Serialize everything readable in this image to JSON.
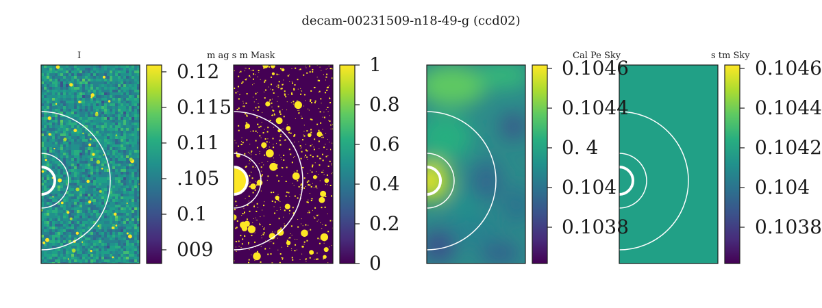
{
  "title": "decam-00231509-n18-49-g (ccd02)",
  "chart_data": [
    {
      "type": "heatmap",
      "title": "I",
      "colormap": "viridis",
      "style": "noise",
      "colorbar_ticks": [
        "0.12",
        "0.115",
        "0.11",
        ".105",
        "0.1",
        "009"
      ],
      "colorbar_fracs": [
        0.0343,
        0.2136,
        0.3929,
        0.5724,
        0.7517,
        0.931
      ]
    },
    {
      "type": "heatmap",
      "title": "m  ag      s           m Mask",
      "colormap": "viridis",
      "style": "mask",
      "colorbar_ticks": [
        "1",
        "0.8",
        "0.6",
        "0.4",
        "0.2",
        "0"
      ],
      "colorbar_fracs": [
        0.0,
        0.2,
        0.4,
        0.6,
        0.8,
        1.0
      ]
    },
    {
      "type": "heatmap",
      "title": "Cal Pe Sky",
      "colormap": "viridis",
      "style": "smooth",
      "colorbar_ticks": [
        "0.1046",
        "0.1044",
        "0.  4",
        "0.104",
        "0.1038"
      ],
      "colorbar_fracs": [
        0.0172,
        0.2172,
        0.4172,
        0.6172,
        0.8172
      ]
    },
    {
      "type": "heatmap",
      "title": "s     tm Sky",
      "colormap": "viridis",
      "style": "flat",
      "colorbar_ticks": [
        "0.1046",
        "0.1044",
        "0.1042",
        "0.104",
        "0.1038"
      ],
      "colorbar_fracs": [
        0.0172,
        0.2172,
        0.4172,
        0.6172,
        0.8172
      ]
    }
  ],
  "colors": {
    "viridis_dark": "#440154",
    "viridis_teal": "#21a086",
    "viridis_yellow": "#fde725",
    "circle": "#ffffff",
    "axis": "#1a1a1a"
  }
}
